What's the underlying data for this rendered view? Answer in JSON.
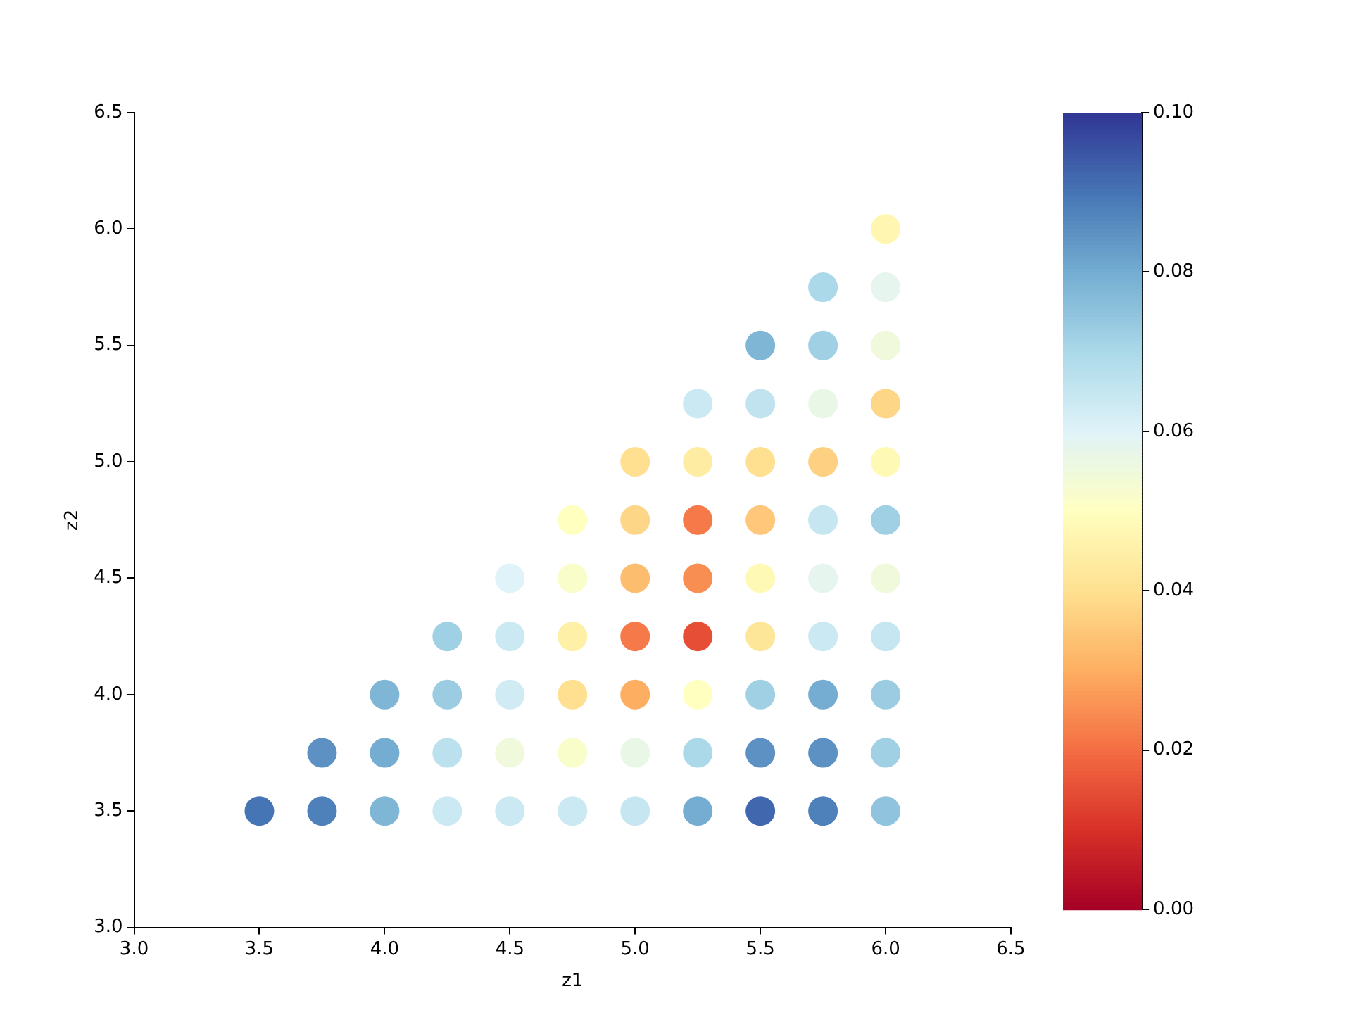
{
  "chart_data": {
    "type": "scatter",
    "xlabel": "z1",
    "ylabel": "z2",
    "marker": "circle",
    "grid": false,
    "legend": false,
    "xlim": [
      3.0,
      6.5
    ],
    "ylim": [
      3.0,
      6.5
    ],
    "xticks": [
      {
        "value": 3,
        "label": "3.0"
      },
      {
        "value": 3.5,
        "label": "3.5"
      },
      {
        "value": 4,
        "label": "4.0"
      },
      {
        "value": 4.5,
        "label": "4.5"
      },
      {
        "value": 5,
        "label": "5.0"
      },
      {
        "value": 5.5,
        "label": "5.5"
      },
      {
        "value": 6,
        "label": "6.0"
      },
      {
        "value": 6.5,
        "label": "6.5"
      }
    ],
    "yticks": [
      {
        "value": 3,
        "label": "3.0"
      },
      {
        "value": 3.5,
        "label": "3.5"
      },
      {
        "value": 4,
        "label": "4.0"
      },
      {
        "value": 4.5,
        "label": "4.5"
      },
      {
        "value": 5,
        "label": "5.0"
      },
      {
        "value": 5.5,
        "label": "5.5"
      },
      {
        "value": 6,
        "label": "6.0"
      },
      {
        "value": 6.5,
        "label": "6.5"
      }
    ],
    "clim": [
      0,
      0.1
    ],
    "cticks": [
      {
        "value": 0,
        "label": "0.00"
      },
      {
        "value": 0.02,
        "label": "0.02"
      },
      {
        "value": 0.04,
        "label": "0.04"
      },
      {
        "value": 0.06,
        "label": "0.06"
      },
      {
        "value": 0.08,
        "label": "0.08"
      },
      {
        "value": 0.1,
        "label": "0.10"
      }
    ],
    "x": [
      3.5,
      3.75,
      4.0,
      4.25,
      4.5,
      4.75,
      5.0,
      5.25,
      5.5,
      5.75,
      6.0,
      3.75,
      4.0,
      4.25,
      4.5,
      4.75,
      5.0,
      5.25,
      5.5,
      5.75,
      6.0,
      4.0,
      4.25,
      4.5,
      4.75,
      5.0,
      5.25,
      5.5,
      5.75,
      6.0,
      4.25,
      4.5,
      4.75,
      5.0,
      5.25,
      5.5,
      5.75,
      6.0,
      4.5,
      4.75,
      5.0,
      5.25,
      5.5,
      5.75,
      6.0,
      4.75,
      5.0,
      5.25,
      5.5,
      5.75,
      6.0,
      5.0,
      5.25,
      5.5,
      5.75,
      6.0,
      5.25,
      5.5,
      5.75,
      6.0,
      5.5,
      5.75,
      6.0,
      5.75,
      6.0,
      6.0
    ],
    "values": [
      3.5,
      3.5,
      3.5,
      3.5,
      3.5,
      3.5,
      3.5,
      3.5,
      3.5,
      3.5,
      3.5,
      3.75,
      3.75,
      3.75,
      3.75,
      3.75,
      3.75,
      3.75,
      3.75,
      3.75,
      3.75,
      4.0,
      4.0,
      4.0,
      4.0,
      4.0,
      4.0,
      4.0,
      4.0,
      4.0,
      4.25,
      4.25,
      4.25,
      4.25,
      4.25,
      4.25,
      4.25,
      4.25,
      4.5,
      4.5,
      4.5,
      4.5,
      4.5,
      4.5,
      4.5,
      4.75,
      4.75,
      4.75,
      4.75,
      4.75,
      4.75,
      5.0,
      5.0,
      5.0,
      5.0,
      5.0,
      5.25,
      5.25,
      5.25,
      5.25,
      5.5,
      5.5,
      5.5,
      5.75,
      5.75,
      6.0
    ],
    "cvalues": [
      0.09,
      0.088,
      0.078,
      0.064,
      0.064,
      0.064,
      0.065,
      0.08,
      0.092,
      0.088,
      0.075,
      0.085,
      0.08,
      0.067,
      0.055,
      0.052,
      0.057,
      0.07,
      0.085,
      0.085,
      0.072,
      0.078,
      0.073,
      0.063,
      0.04,
      0.03,
      0.05,
      0.072,
      0.08,
      0.073,
      0.072,
      0.064,
      0.045,
      0.022,
      0.015,
      0.042,
      0.064,
      0.065,
      0.06,
      0.052,
      0.033,
      0.025,
      0.048,
      0.058,
      0.055,
      0.05,
      0.038,
      0.022,
      0.035,
      0.065,
      0.072,
      0.04,
      0.044,
      0.04,
      0.037,
      0.048,
      0.064,
      0.066,
      0.057,
      0.038,
      0.078,
      0.072,
      0.055,
      0.07,
      0.058,
      0.047
    ]
  }
}
